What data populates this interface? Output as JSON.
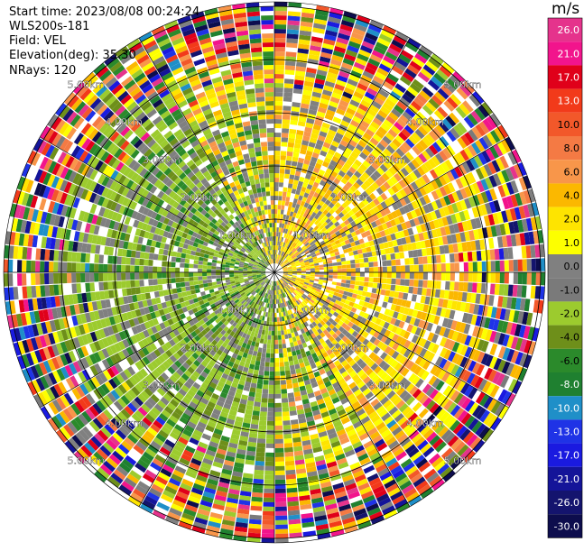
{
  "header": {
    "start_time": "Start time: 2023/08/08 00:24:24",
    "instrument": "WLS200s-181",
    "field": "Field: VEL",
    "elevation": "Elevation(deg): 35.30",
    "nrays": "NRays: 120"
  },
  "colorbar": {
    "unit": "m/s",
    "ticks": [
      "26.0",
      "21.0",
      "17.0",
      "13.0",
      "10.0",
      "8.0",
      "6.0",
      "4.0",
      "2.0",
      "1.0",
      "0.0",
      "-1.0",
      "-2.0",
      "-4.0",
      "-6.0",
      "-8.0",
      "-10.0",
      "-13.0",
      "-17.0",
      "-21.0",
      "-26.0",
      "-30.0"
    ],
    "colors": [
      "#e5338c",
      "#f2148c",
      "#e0001a",
      "#f23a1a",
      "#f2582a",
      "#f47a44",
      "#f8964a",
      "#fbb800",
      "#fee400",
      "#fdff00",
      "#808080",
      "#7a7a7a",
      "#9ccb2e",
      "#6e8f1a",
      "#2b8a2b",
      "#1f8030",
      "#1f8fc8",
      "#1f33e6",
      "#1a1ae0",
      "#141499",
      "#14146e",
      "#0d0d4d"
    ]
  },
  "chart_data": {
    "type": "heatmap",
    "projection": "polar (PPI)",
    "field": "VEL",
    "units": "m/s",
    "nrays": 120,
    "elevation_deg": 35.3,
    "range_rings_km": [
      1.0,
      2.0,
      3.0,
      4.0,
      5.0
    ],
    "ring_labels": [
      "1.00km",
      "2.00km",
      "3.00km",
      "4.00km",
      "5.00km"
    ],
    "color_scale": {
      "min": -30.0,
      "max": 26.0,
      "levels": [
        -30.0,
        -26.0,
        -21.0,
        -17.0,
        -13.0,
        -10.0,
        -8.0,
        -6.0,
        -4.0,
        -2.0,
        -1.0,
        0.0,
        1.0,
        2.0,
        4.0,
        6.0,
        8.0,
        10.0,
        13.0,
        17.0,
        21.0,
        26.0
      ]
    },
    "patterns": {
      "inner_west_south": "green negative velocities (-1 to -6 m/s)",
      "inner_east_north": "yellow/orange positive velocities (1 to 6 m/s)",
      "outer_ring": "noisy multicolor returns beyond ~4 km"
    }
  }
}
